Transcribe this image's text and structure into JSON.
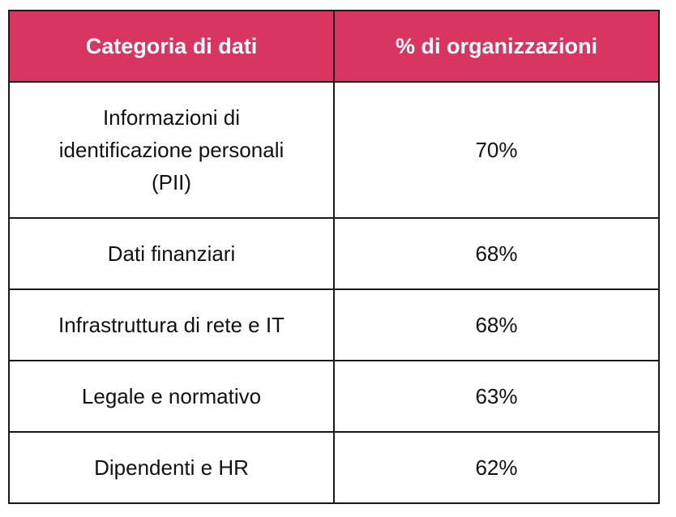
{
  "table": {
    "headers": [
      "Categoria di dati",
      "% di organizzazioni"
    ],
    "rows": [
      {
        "category": "Informazioni di identificazione personali (PII)",
        "percent": "70%"
      },
      {
        "category": "Dati finanziari",
        "percent": "68%"
      },
      {
        "category": "Infrastruttura di rete e IT",
        "percent": "68%"
      },
      {
        "category": "Legale e normativo",
        "percent": "63%"
      },
      {
        "category": "Dipendenti e HR",
        "percent": "62%"
      }
    ]
  },
  "colors": {
    "header_bg": "#d93561",
    "header_text": "#ffffff",
    "border": "#1a1a1a"
  }
}
